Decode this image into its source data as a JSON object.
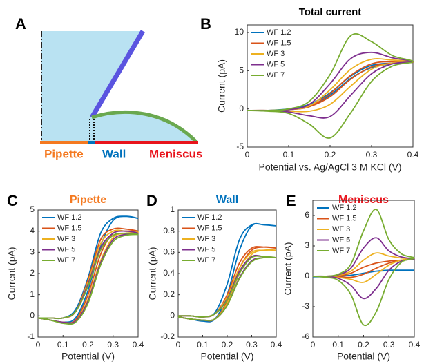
{
  "diagram": {
    "label": "A",
    "labels": [
      "Pipette",
      "Wall",
      "Meniscus"
    ]
  },
  "chart_data": [
    {
      "type": "line",
      "label": "B",
      "title": "Total current",
      "title_color": "#000000",
      "x_label": "Potential vs. Ag/AgCl 3 M KCl (V)",
      "y_label": "Current (pA)",
      "xlim": [
        0,
        0.4
      ],
      "xticks": [
        0,
        0.1,
        0.2,
        0.3,
        0.4
      ],
      "ylim": [
        -5,
        11
      ],
      "yticks": [
        -5,
        0,
        5,
        10
      ],
      "x": [
        0,
        0.05,
        0.1,
        0.15,
        0.2,
        0.25,
        0.3,
        0.35,
        0.4,
        0.35,
        0.3,
        0.25,
        0.2,
        0.15,
        0.1,
        0.05,
        0
      ],
      "series": [
        {
          "name": "WF 1.2",
          "color": "#0072BD",
          "values": [
            -0.2,
            -0.2,
            -0.1,
            0.3,
            1.8,
            4.0,
            5.4,
            5.9,
            6.1,
            6.0,
            5.7,
            4.3,
            2.1,
            0.6,
            0.0,
            -0.2,
            -0.2
          ]
        },
        {
          "name": "WF 1.5",
          "color": "#D95319",
          "values": [
            -0.2,
            -0.2,
            -0.1,
            0.3,
            2.0,
            4.4,
            5.9,
            6.2,
            6.1,
            6.0,
            5.5,
            3.9,
            1.6,
            0.3,
            -0.1,
            -0.2,
            -0.2
          ]
        },
        {
          "name": "WF 3",
          "color": "#EDB120",
          "values": [
            -0.2,
            -0.2,
            -0.1,
            0.4,
            2.5,
            5.2,
            6.5,
            6.4,
            6.2,
            6.0,
            5.2,
            3.0,
            0.6,
            -0.3,
            -0.3,
            -0.2,
            -0.2
          ]
        },
        {
          "name": "WF 5",
          "color": "#7E2F8E",
          "values": [
            -0.2,
            -0.2,
            -0.1,
            0.6,
            3.3,
            6.6,
            7.4,
            6.7,
            6.2,
            5.9,
            4.6,
            1.8,
            -1.0,
            -0.9,
            -0.4,
            -0.2,
            -0.2
          ]
        },
        {
          "name": "WF 7",
          "color": "#77AC30",
          "values": [
            -0.2,
            -0.2,
            0,
            1.0,
            4.5,
            9.6,
            8.8,
            7.0,
            6.2,
            5.6,
            3.6,
            -0.5,
            -3.8,
            -2.0,
            -0.6,
            -0.3,
            -0.2
          ]
        }
      ]
    },
    {
      "type": "line",
      "label": "C",
      "title": "Pipette",
      "title_color": "#F47920",
      "x_label": "Potential (V)",
      "y_label": "Current (pA)",
      "xlim": [
        0,
        0.4
      ],
      "xticks": [
        0,
        0.1,
        0.2,
        0.3,
        0.4
      ],
      "ylim": [
        -1,
        5
      ],
      "yticks": [
        -1,
        0,
        1,
        2,
        3,
        4,
        5
      ],
      "x": [
        0,
        0.05,
        0.1,
        0.15,
        0.2,
        0.25,
        0.3,
        0.35,
        0.4,
        0.35,
        0.3,
        0.25,
        0.2,
        0.15,
        0.1,
        0.05,
        0
      ],
      "series": [
        {
          "name": "WF 1.2",
          "color": "#0072BD",
          "values": [
            -0.1,
            -0.1,
            -0.1,
            0.3,
            1.8,
            3.9,
            4.6,
            4.7,
            4.6,
            4.7,
            4.5,
            3.3,
            1.2,
            -0.1,
            -0.3,
            -0.2,
            -0.1
          ]
        },
        {
          "name": "WF 1.5",
          "color": "#D95319",
          "values": [
            -0.1,
            -0.1,
            -0.1,
            0.2,
            1.7,
            3.6,
            4.1,
            4.1,
            4.0,
            4.0,
            3.9,
            2.9,
            1.0,
            -0.2,
            -0.3,
            -0.2,
            -0.1
          ]
        },
        {
          "name": "WF 3",
          "color": "#EDB120",
          "values": [
            -0.1,
            -0.1,
            -0.1,
            0.2,
            1.6,
            3.4,
            4.0,
            4.0,
            3.95,
            3.9,
            3.7,
            2.6,
            0.8,
            -0.25,
            -0.3,
            -0.2,
            -0.1
          ]
        },
        {
          "name": "WF 5",
          "color": "#7E2F8E",
          "values": [
            -0.1,
            -0.1,
            -0.1,
            0.2,
            1.5,
            3.2,
            3.9,
            4.0,
            3.9,
            3.85,
            3.6,
            2.5,
            0.7,
            -0.25,
            -0.3,
            -0.2,
            -0.1
          ]
        },
        {
          "name": "WF 7",
          "color": "#77AC30",
          "values": [
            -0.1,
            -0.1,
            -0.1,
            0.2,
            1.4,
            3.1,
            3.8,
            3.9,
            3.85,
            3.8,
            3.5,
            2.4,
            0.6,
            -0.3,
            -0.35,
            -0.2,
            -0.1
          ]
        }
      ]
    },
    {
      "type": "line",
      "label": "D",
      "title": "Wall",
      "title_color": "#0072BD",
      "x_label": "Potential (V)",
      "y_label": "Current (pA)",
      "xlim": [
        0,
        0.4
      ],
      "xticks": [
        0,
        0.1,
        0.2,
        0.3,
        0.4
      ],
      "ylim": [
        -0.2,
        1
      ],
      "yticks": [
        -0.2,
        0,
        0.2,
        0.4,
        0.6,
        0.8,
        1
      ],
      "x": [
        0,
        0.05,
        0.1,
        0.15,
        0.2,
        0.25,
        0.3,
        0.35,
        0.4,
        0.35,
        0.3,
        0.25,
        0.2,
        0.15,
        0.1,
        0.05,
        0
      ],
      "series": [
        {
          "name": "WF 1.2",
          "color": "#0072BD",
          "values": [
            0,
            0,
            -0.01,
            0.03,
            0.3,
            0.72,
            0.86,
            0.86,
            0.85,
            0.86,
            0.85,
            0.62,
            0.2,
            -0.03,
            -0.05,
            -0.03,
            -0.01
          ]
        },
        {
          "name": "WF 1.5",
          "color": "#D95319",
          "values": [
            0,
            0,
            -0.01,
            0.02,
            0.2,
            0.5,
            0.64,
            0.65,
            0.64,
            0.65,
            0.62,
            0.45,
            0.14,
            -0.03,
            -0.04,
            -0.03,
            -0.01
          ]
        },
        {
          "name": "WF 3",
          "color": "#EDB120",
          "values": [
            0,
            0,
            -0.01,
            0.02,
            0.18,
            0.45,
            0.6,
            0.62,
            0.62,
            0.62,
            0.58,
            0.4,
            0.12,
            -0.03,
            -0.04,
            -0.03,
            -0.01
          ]
        },
        {
          "name": "WF 5",
          "color": "#7E2F8E",
          "values": [
            0,
            0,
            -0.01,
            0.02,
            0.16,
            0.42,
            0.56,
            0.56,
            0.55,
            0.55,
            0.52,
            0.36,
            0.1,
            -0.03,
            -0.04,
            -0.03,
            -0.01
          ]
        },
        {
          "name": "WF 7",
          "color": "#77AC30",
          "values": [
            0,
            0,
            -0.01,
            0.02,
            0.15,
            0.4,
            0.55,
            0.56,
            0.55,
            0.55,
            0.51,
            0.35,
            0.1,
            -0.03,
            -0.04,
            -0.03,
            -0.01
          ]
        }
      ]
    },
    {
      "type": "line",
      "label": "E",
      "title": "Meniscus",
      "title_color": "#E8141C",
      "x_label": "Potential (V)",
      "y_label": "Current (pA)",
      "xlim": [
        0,
        0.4
      ],
      "xticks": [
        0,
        0.1,
        0.2,
        0.3,
        0.4
      ],
      "ylim": [
        -6,
        7.5
      ],
      "yticks": [
        -6,
        -3,
        0,
        3,
        6
      ],
      "x": [
        0,
        0.05,
        0.1,
        0.15,
        0.2,
        0.25,
        0.3,
        0.35,
        0.4,
        0.35,
        0.3,
        0.25,
        0.2,
        0.15,
        0.1,
        0.05,
        0
      ],
      "series": [
        {
          "name": "WF 1.2",
          "color": "#0072BD",
          "values": [
            -0.05,
            0,
            0,
            0.1,
            0.3,
            0.5,
            0.55,
            0.6,
            0.6,
            0.6,
            0.6,
            0.5,
            0.3,
            0.1,
            0,
            -0.05,
            -0.05
          ]
        },
        {
          "name": "WF 1.5",
          "color": "#D95319",
          "values": [
            0,
            0,
            0.05,
            0.3,
            0.9,
            1.3,
            1.5,
            1.6,
            1.7,
            1.6,
            1.3,
            0.8,
            0.2,
            -0.1,
            -0.05,
            0,
            0
          ]
        },
        {
          "name": "WF 3",
          "color": "#EDB120",
          "values": [
            0,
            0,
            0.1,
            0.5,
            1.6,
            2.3,
            2.0,
            1.8,
            1.7,
            1.6,
            1.1,
            0.2,
            -0.6,
            -0.3,
            -0.1,
            0,
            0
          ]
        },
        {
          "name": "WF 5",
          "color": "#7E2F8E",
          "values": [
            0,
            0,
            0.15,
            0.8,
            2.8,
            3.8,
            2.5,
            1.9,
            1.7,
            1.5,
            0.6,
            -1.2,
            -2.2,
            -0.9,
            -0.2,
            0,
            0
          ]
        },
        {
          "name": "WF 7",
          "color": "#77AC30",
          "values": [
            0,
            0,
            0.2,
            1.2,
            4.5,
            6.6,
            3.6,
            2.2,
            1.8,
            1.4,
            -0.3,
            -3.5,
            -4.8,
            -1.8,
            -0.4,
            -0.1,
            0
          ]
        }
      ]
    }
  ]
}
